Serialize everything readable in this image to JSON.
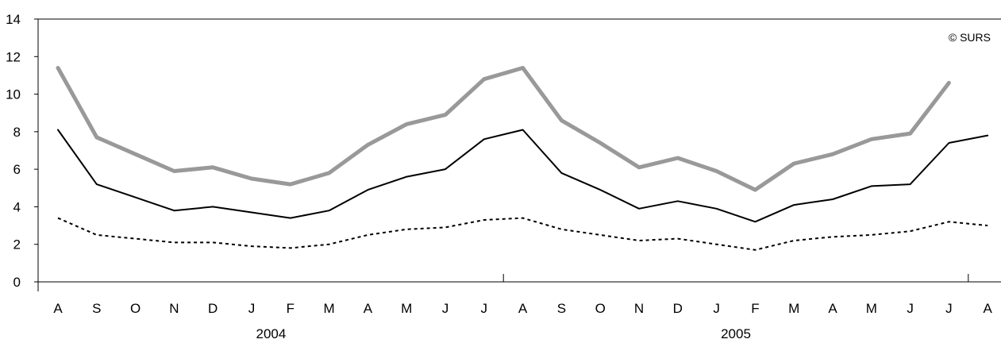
{
  "chart_data": {
    "type": "line",
    "credit": "© SURS",
    "categories": [
      "A",
      "S",
      "O",
      "N",
      "D",
      "J",
      "F",
      "M",
      "A",
      "M",
      "J",
      "J",
      "A",
      "S",
      "O",
      "N",
      "D",
      "J",
      "F",
      "M",
      "A",
      "M",
      "J",
      "J",
      "A"
    ],
    "year_labels": [
      "2004",
      "2005"
    ],
    "ylim": [
      0,
      14
    ],
    "yticks": [
      0,
      2,
      4,
      6,
      8,
      10,
      12,
      14
    ],
    "series": [
      {
        "style": "thick-grey",
        "color": "#999999",
        "values": [
          11.4,
          7.7,
          6.8,
          5.9,
          6.1,
          5.5,
          5.2,
          5.8,
          7.3,
          8.4,
          8.9,
          10.8,
          11.4,
          8.6,
          7.4,
          6.1,
          6.6,
          5.9,
          4.9,
          6.3,
          6.8,
          7.6,
          7.9,
          10.6,
          null
        ]
      },
      {
        "style": "thin-black",
        "color": "#000000",
        "values": [
          8.1,
          5.2,
          4.5,
          3.8,
          4.0,
          3.7,
          3.4,
          3.8,
          4.9,
          5.6,
          6.0,
          7.6,
          8.1,
          5.8,
          4.9,
          3.9,
          4.3,
          3.9,
          3.2,
          4.1,
          4.4,
          5.1,
          5.2,
          7.4,
          7.8
        ]
      },
      {
        "style": "dotted-black",
        "color": "#000000",
        "values": [
          3.4,
          2.5,
          2.3,
          2.1,
          2.1,
          1.9,
          1.8,
          2.0,
          2.5,
          2.8,
          2.9,
          3.3,
          3.4,
          2.8,
          2.5,
          2.2,
          2.3,
          2.0,
          1.7,
          2.2,
          2.4,
          2.5,
          2.7,
          3.2,
          3.0
        ]
      }
    ]
  }
}
